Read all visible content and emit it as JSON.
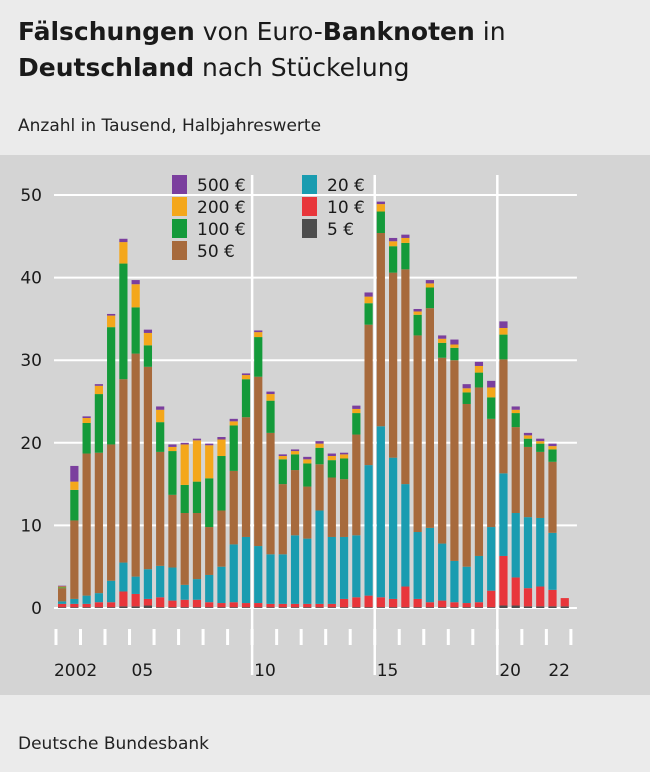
{
  "header": {
    "title_part1": "Fälschungen",
    "title_part2": " von Euro-",
    "title_part3": "Banknoten",
    "title_part4": " in",
    "title_part5": "Deutschland",
    "title_part6": " nach Stückelung",
    "subtitle": "Anzahl in Tausend, Halbjahreswerte"
  },
  "footer": {
    "source": "Deutsche Bundesbank"
  },
  "chart_data": {
    "type": "bar",
    "stacked": true,
    "title": "Fälschungen von Euro-Banknoten in Deutschland nach Stückelung",
    "subtitle": "Anzahl in Tausend, Halbjahreswerte",
    "ylim": [
      0,
      50
    ],
    "yticks": [
      0,
      10,
      20,
      30,
      40,
      50
    ],
    "grid": "horizontal",
    "legend_placement": "top-left",
    "periods": [
      "2002 H1",
      "2002 H2",
      "2003 H1",
      "2003 H2",
      "2004 H1",
      "2004 H2",
      "2005 H1",
      "2005 H2",
      "2006 H1",
      "2006 H2",
      "2007 H1",
      "2007 H2",
      "2008 H1",
      "2008 H2",
      "2009 H1",
      "2009 H2",
      "2010 H1",
      "2010 H2",
      "2011 H1",
      "2011 H2",
      "2012 H1",
      "2012 H2",
      "2013 H1",
      "2013 H2",
      "2014 H1",
      "2014 H2",
      "2015 H1",
      "2015 H2",
      "2016 H1",
      "2016 H2",
      "2017 H1",
      "2017 H2",
      "2018 H1",
      "2018 H2",
      "2019 H1",
      "2019 H2",
      "2020 H1",
      "2020 H2",
      "2021 H1",
      "2021 H2",
      "2022 H1",
      "2022 H2"
    ],
    "x_tick_labels": [
      {
        "text": "2002",
        "index": 0
      },
      {
        "text": "05",
        "index": 6
      },
      {
        "text": "10",
        "index": 16
      },
      {
        "text": "15",
        "index": 26
      },
      {
        "text": "20",
        "index": 36
      },
      {
        "text": "22",
        "index": 40
      }
    ],
    "highlight_indices": [
      16,
      26,
      36
    ],
    "series": [
      {
        "name": "5 €",
        "color": "#4d4d4d",
        "values": [
          0.1,
          0.1,
          0.1,
          0.1,
          0.1,
          0.2,
          0.2,
          0.3,
          0.1,
          0.1,
          0.1,
          0.1,
          0.1,
          0.1,
          0.1,
          0.1,
          0.1,
          0.1,
          0.1,
          0.1,
          0.1,
          0.1,
          0.1,
          0.1,
          0.1,
          0.1,
          0.1,
          0.1,
          0.1,
          0.1,
          0.1,
          0.1,
          0.1,
          0.1,
          0.1,
          0.1,
          0.3,
          0.3,
          0.2,
          0.2,
          0.2,
          0.2
        ]
      },
      {
        "name": "10 €",
        "color": "#e8363b",
        "values": [
          0.4,
          0.4,
          0.4,
          0.6,
          0.6,
          1.8,
          1.5,
          0.8,
          1.2,
          0.8,
          0.9,
          0.9,
          0.6,
          0.5,
          0.6,
          0.5,
          0.5,
          0.4,
          0.4,
          0.4,
          0.4,
          0.4,
          0.4,
          1.0,
          1.2,
          1.4,
          1.2,
          1.0,
          2.5,
          1.0,
          0.6,
          0.8,
          0.6,
          0.5,
          0.6,
          2.0,
          6.0,
          3.4,
          2.2,
          2.4,
          2.0,
          1.0
        ]
      },
      {
        "name": "20 €",
        "color": "#1a9cb0",
        "values": [
          0.3,
          0.6,
          1.0,
          1.1,
          2.6,
          3.5,
          2.1,
          3.6,
          3.8,
          4.0,
          1.8,
          2.5,
          3.3,
          4.4,
          7.0,
          8.0,
          6.9,
          6.0,
          6.0,
          8.3,
          7.9,
          11.3,
          8.1,
          7.5,
          7.5,
          15.8,
          20.7,
          17.1,
          12.4,
          8.1,
          9.0,
          6.9,
          5.0,
          4.4,
          5.6,
          7.7,
          10.0,
          7.8,
          8.6,
          8.3,
          6.9,
          0.0
        ]
      },
      {
        "name": "50 €",
        "color": "#a76a3c",
        "values": [
          1.6,
          9.5,
          17.2,
          17.0,
          16.5,
          22.2,
          27.0,
          24.5,
          13.8,
          8.8,
          8.7,
          8.0,
          5.8,
          6.8,
          8.9,
          14.5,
          20.5,
          14.7,
          8.5,
          7.9,
          6.3,
          5.6,
          7.2,
          7.0,
          12.2,
          17.0,
          23.4,
          22.4,
          26.0,
          23.8,
          26.6,
          22.5,
          24.3,
          19.7,
          20.4,
          13.1,
          13.8,
          10.4,
          8.5,
          8.0,
          8.6,
          0.0
        ]
      },
      {
        "name": "100 €",
        "color": "#149a3a",
        "values": [
          0.1,
          3.7,
          3.7,
          7.1,
          14.2,
          14.0,
          5.6,
          2.6,
          3.6,
          5.3,
          3.4,
          3.8,
          5.9,
          6.6,
          5.5,
          4.6,
          4.8,
          3.9,
          3.0,
          1.9,
          2.8,
          2.0,
          2.1,
          2.5,
          2.6,
          2.6,
          2.6,
          3.2,
          3.2,
          2.5,
          2.5,
          1.8,
          1.5,
          1.4,
          1.8,
          2.6,
          3.0,
          1.7,
          1.0,
          1.0,
          1.5,
          0.0
        ]
      },
      {
        "name": "200 €",
        "color": "#f4a71b",
        "values": [
          0.1,
          1.0,
          0.6,
          1.0,
          1.4,
          2.6,
          2.8,
          1.5,
          1.5,
          0.5,
          4.9,
          5.0,
          4.0,
          2.0,
          0.5,
          0.5,
          0.6,
          0.8,
          0.4,
          0.4,
          0.5,
          0.5,
          0.5,
          0.5,
          0.5,
          0.8,
          0.9,
          0.6,
          0.6,
          0.4,
          0.5,
          0.5,
          0.4,
          0.5,
          0.8,
          1.2,
          0.8,
          0.4,
          0.4,
          0.3,
          0.4,
          0.0
        ]
      },
      {
        "name": "500 €",
        "color": "#7b3f9e",
        "values": [
          0.1,
          1.9,
          0.2,
          0.2,
          0.2,
          0.4,
          0.5,
          0.4,
          0.4,
          0.3,
          0.2,
          0.2,
          0.2,
          0.3,
          0.3,
          0.2,
          0.2,
          0.3,
          0.2,
          0.2,
          0.3,
          0.3,
          0.3,
          0.2,
          0.4,
          0.5,
          0.3,
          0.4,
          0.4,
          0.3,
          0.4,
          0.4,
          0.6,
          0.5,
          0.5,
          0.8,
          0.8,
          0.4,
          0.3,
          0.3,
          0.3,
          0.0
        ]
      }
    ],
    "legend": [
      {
        "label": "500 €",
        "color": "#7b3f9e"
      },
      {
        "label": "200 €",
        "color": "#f4a71b"
      },
      {
        "label": "100 €",
        "color": "#149a3a"
      },
      {
        "label": "50 €",
        "color": "#a76a3c"
      },
      {
        "label": "20 €",
        "color": "#1a9cb0"
      },
      {
        "label": "10 €",
        "color": "#e8363b"
      },
      {
        "label": "5 €",
        "color": "#4d4d4d"
      }
    ]
  }
}
